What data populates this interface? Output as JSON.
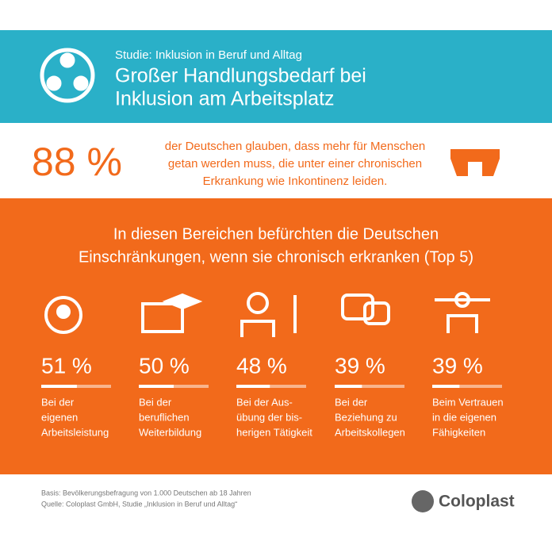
{
  "header": {
    "subtitle": "Studie: Inklusion in Beruf und Alltag",
    "title_lines": [
      "Großer Handlungsbedarf bei",
      "Inklusion am Arbeitsplatz"
    ]
  },
  "highlight": {
    "value_label": "88 %",
    "text_lines": [
      "der Deutschen glauben, dass mehr für Menschen",
      "getan werden muss, die unter einer chronischen",
      "Erkrankung wie Inkontinenz leiden."
    ]
  },
  "section": {
    "heading_lines": [
      "In diesen Bereichen befürchten die Deutschen",
      "Einschränkungen, wenn sie chronisch erkranken (Top 5)"
    ],
    "items": [
      {
        "value": 51,
        "value_label": "51 %",
        "text_lines": [
          "Bei der",
          "eigenen",
          "Arbeitsleistung"
        ]
      },
      {
        "value": 50,
        "value_label": "50 %",
        "text_lines": [
          "Bei der",
          "beruflichen",
          "Weiterbildung"
        ]
      },
      {
        "value": 48,
        "value_label": "48 %",
        "text_lines": [
          "Bei der Aus-",
          "übung der bis-",
          "herigen Tätigkeit"
        ]
      },
      {
        "value": 39,
        "value_label": "39 %",
        "text_lines": [
          "Bei der",
          "Beziehung zu",
          "Arbeitskollegen"
        ]
      },
      {
        "value": 39,
        "value_label": "39 %",
        "text_lines": [
          "Beim Vertrauen",
          "in die eigenen",
          "Fähigkeiten"
        ]
      }
    ]
  },
  "footer": {
    "source_lines": [
      "Basis: Bevölkerungsbefragung von 1.000 Deutschen ab 18 Jahren",
      "Quelle: Coloplast GmbH, Studie „Inklusion in Beruf und Alltag“"
    ],
    "brand": "Coloplast"
  }
}
